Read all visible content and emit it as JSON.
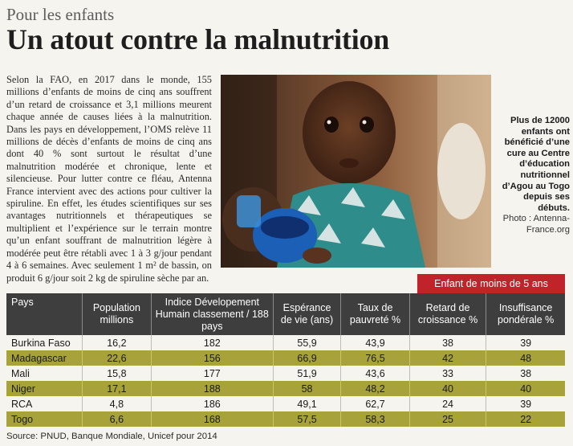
{
  "article": {
    "kicker": "Pour les enfants",
    "headline": "Un atout contre la malnutrition",
    "body": "Selon la FAO, en 2017 dans le monde, 155 millions d’enfants de moins de cinq ans souffrent d’un retard de croissance et 3,1 millions meurent chaque année de causes liées à la malnutrition. Dans les pays en développement, l’OMS relève 11 millions de décès d’enfants de moins de cinq ans dont 40 % sont surtout le résultat d’une malnutrition modérée et chronique, lente et silencieuse. Pour lutter contre ce fléau, Antenna France intervient avec des actions pour cultiver la spiruline. En effet, les études scientifiques sur ses avantages nutritionnels et thérapeutiques se multiplient et l’expérience sur le terrain montre qu’un enfant souffrant de malnutrition légère à modérée peut être rétabli avec 1 à 3 g/jour pendant 4 à 6 semaines. Avec seulement 1 m² de bassin, on produit 6 g/jour soit 2 kg de spiruline sèche par an."
  },
  "photo": {
    "caption": "Plus de 12000 enfants ont bénéficié d’une cure au Centre d’éducation nutritionnel d’Agou au Togo depuis ses débuts.",
    "credit": "Photo : Antenna-France.org"
  },
  "table": {
    "group_header": "Enfant de moins de 5 ans",
    "columns": [
      "Pays",
      "Population millions",
      "Indice Dévelopement Humain classement / 188 pays",
      "Espérance de vie (ans)",
      "Taux de pauvreté %",
      "Retard de croissance %",
      "Insuffisance pondérale %"
    ],
    "rows": [
      [
        "Burkina Faso",
        "16,2",
        "182",
        "55,9",
        "43,9",
        "38",
        "39"
      ],
      [
        "Madagascar",
        "22,6",
        "156",
        "66,9",
        "76,5",
        "42",
        "48"
      ],
      [
        "Mali",
        "15,8",
        "177",
        "51,9",
        "43,6",
        "33",
        "38"
      ],
      [
        "Niger",
        "17,1",
        "188",
        "58",
        "48,2",
        "40",
        "40"
      ],
      [
        "RCA",
        "4,8",
        "186",
        "49,1",
        "62,7",
        "24",
        "39"
      ],
      [
        "Togo",
        "6,6",
        "168",
        "57,5",
        "58,3",
        "25",
        "22"
      ]
    ],
    "source": "Source: PNUD, Banque Mondiale, Unicef pour 2014"
  },
  "colors": {
    "header_dark": "#3e3e3e",
    "accent_red": "#c1232b",
    "row_olive": "#a7a33a",
    "paper": "#f6f4ef"
  }
}
